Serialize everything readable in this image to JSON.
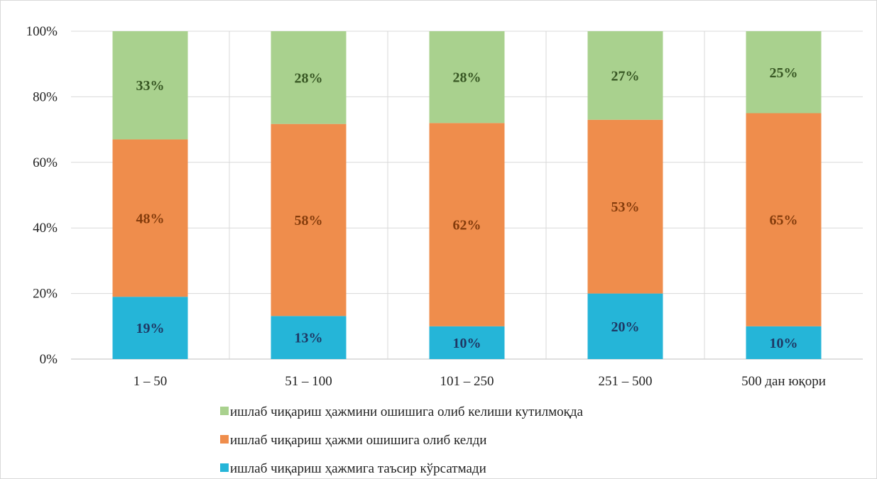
{
  "chart_data": {
    "type": "bar",
    "stacked": true,
    "categories": [
      "1 – 50",
      "51 – 100",
      "101 – 250",
      "251 – 500",
      "500 дан юқори"
    ],
    "series": [
      {
        "name": "ишлаб чиқариш ҳажмига таъсир кўрсатмади",
        "values": [
          19,
          13,
          10,
          20,
          10
        ],
        "labels": [
          "19%",
          "13%",
          "10%",
          "20%",
          "10%"
        ],
        "color": "#25B5D8",
        "label_color": "#1F3864"
      },
      {
        "name": "ишлаб чиқариш ҳажми ошишига олиб келди",
        "values": [
          48,
          58,
          62,
          53,
          65
        ],
        "labels": [
          "48%",
          "58%",
          "62%",
          "53%",
          "65%"
        ],
        "color": "#EF8D4C",
        "label_color": "#843C0C"
      },
      {
        "name": "ишлаб чиқариш ҳажмини ошишига олиб келиши кутилмоқда",
        "values": [
          33,
          28,
          28,
          27,
          25
        ],
        "labels": [
          "33%",
          "28%",
          "28%",
          "27%",
          "25%"
        ],
        "color": "#A9D18E",
        "label_color": "#375623"
      }
    ],
    "y_ticks": [
      "0%",
      "20%",
      "40%",
      "60%",
      "80%",
      "100%"
    ],
    "ylim": [
      0,
      100
    ],
    "grid": true,
    "legend_position": "bottom",
    "legend_order": [
      2,
      1,
      0
    ]
  }
}
